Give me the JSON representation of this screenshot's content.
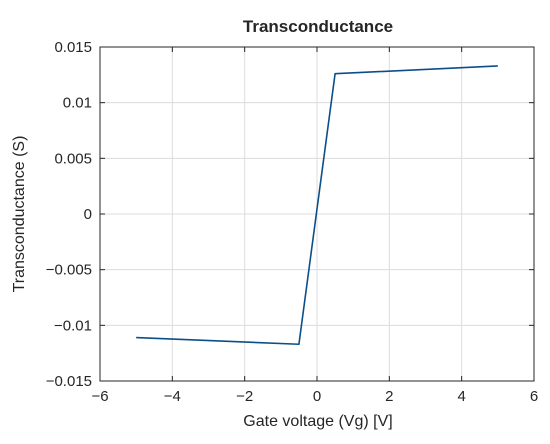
{
  "chart_data": {
    "type": "line",
    "title": "Transconductance",
    "xlabel": "Gate voltage (Vg) [V]",
    "ylabel": "Transconductance (S)",
    "xlim": [
      -6,
      6
    ],
    "ylim": [
      -0.015,
      0.015
    ],
    "xticks": [
      -6,
      -4,
      -2,
      0,
      2,
      4,
      6
    ],
    "xtick_labels": [
      "−6",
      "−4",
      "−2",
      "0",
      "2",
      "4",
      "6"
    ],
    "yticks": [
      -0.015,
      -0.01,
      -0.005,
      0,
      0.005,
      0.01,
      0.015
    ],
    "ytick_labels": [
      "−0.015",
      "−0.01",
      "−0.005",
      "0",
      "0.005",
      "0.01",
      "0.015"
    ],
    "grid": true,
    "line_color": "#0b4f8a",
    "series": [
      {
        "x": [
          -5,
          -0.5,
          0.5,
          5
        ],
        "y": [
          -0.0111,
          -0.0117,
          0.0126,
          0.0133
        ]
      }
    ]
  }
}
